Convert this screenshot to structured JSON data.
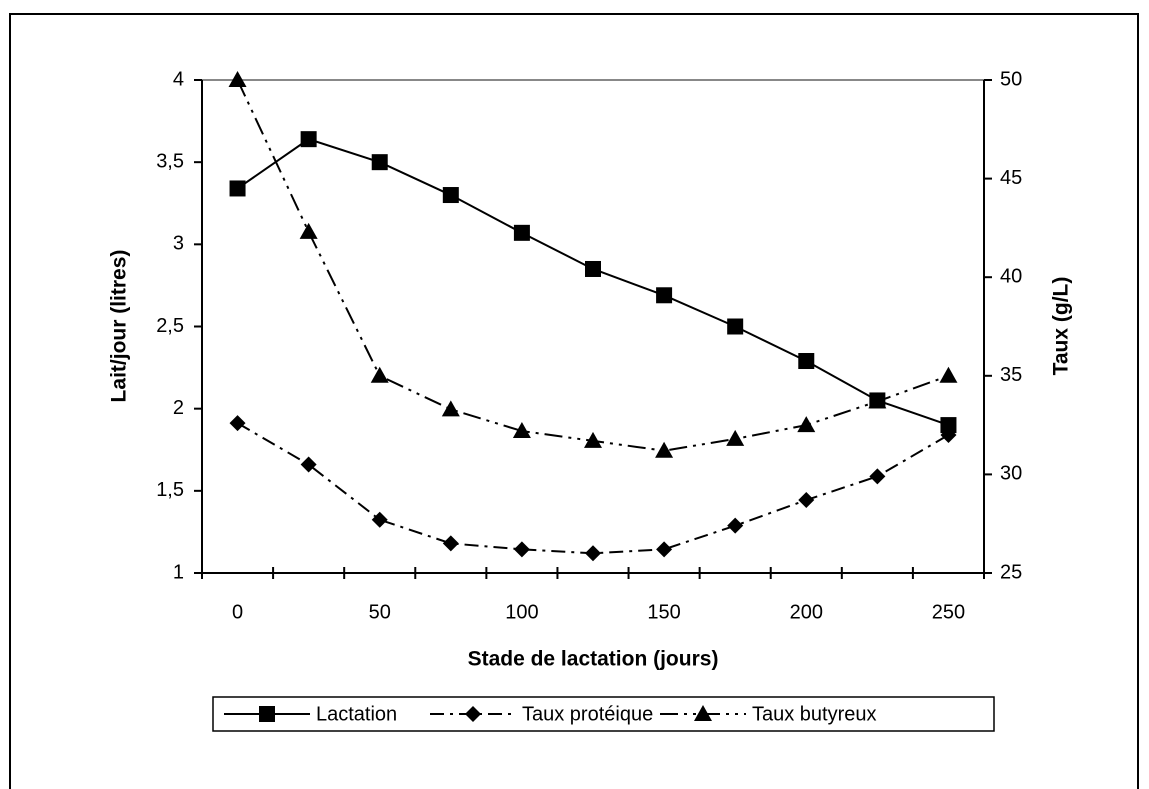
{
  "chart_data": {
    "type": "line",
    "x_label": "Stade de lactation (jours)",
    "y_label": "Lait/jour (litres)",
    "y2_label": "Taux (g/L)",
    "categories": [
      "0",
      null,
      "50",
      null,
      "100",
      null,
      "150",
      null,
      "200",
      null,
      "250"
    ],
    "ylim": [
      1,
      4
    ],
    "yticks": [
      1,
      {
        "value": 1.5,
        "label": "1,5"
      },
      2,
      {
        "value": 2.5,
        "label": "2,5"
      },
      3,
      {
        "value": 3.5,
        "label": "3,5"
      },
      4
    ],
    "y2lim": [
      25,
      50
    ],
    "y2ticks": [
      25,
      30,
      35,
      40,
      45,
      50
    ],
    "series": [
      {
        "name": "Lactation",
        "color": "#000000",
        "marker": "square",
        "linestyle": "solid",
        "values": [
          3.34,
          3.64,
          3.5,
          3.3,
          3.07,
          2.85,
          2.69,
          2.5,
          2.29,
          2.05,
          1.9
        ]
      },
      {
        "name": "Taux protéique",
        "color": "#000000",
        "marker": "diamond",
        "linestyle": "dashdot",
        "axis": "y2",
        "values": [
          32.6,
          30.5,
          27.7,
          26.5,
          26.2,
          26.0,
          26.2,
          27.4,
          28.7,
          29.9,
          32.0
        ]
      },
      {
        "name": "Taux butyreux",
        "color": "#000000",
        "marker": "triangle",
        "linestyle": "dashdotdot",
        "axis": "y2",
        "values": [
          50,
          42.3,
          35.0,
          33.3,
          32.2,
          31.7,
          31.2,
          31.8,
          32.5,
          33.7,
          35.0
        ]
      }
    ],
    "legend": "bottom"
  }
}
